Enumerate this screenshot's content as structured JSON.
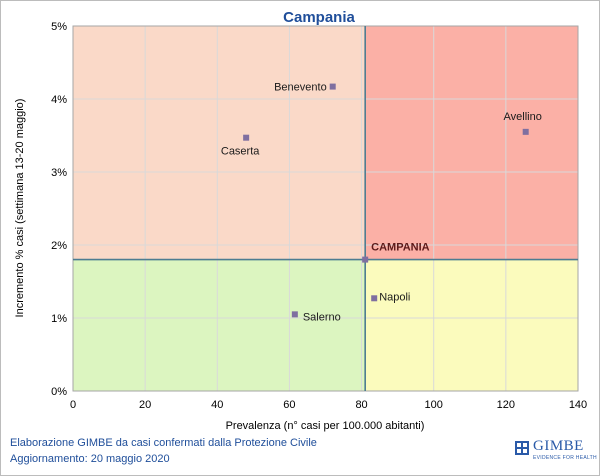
{
  "chart_data": {
    "type": "scatter",
    "title": "Campania",
    "xlabel": "Prevalenza  (n° casi per 100.000 abitanti)",
    "ylabel": "Incremento % casi (settimana 13-20 maggio)",
    "xlim": [
      0,
      140
    ],
    "ylim": [
      0,
      5
    ],
    "x_ticks": [
      "0",
      "20",
      "40",
      "60",
      "80",
      "100",
      "120",
      "140"
    ],
    "y_ticks": [
      "0%",
      "1%",
      "2%",
      "3%",
      "4%",
      "5%"
    ],
    "reference": {
      "label": "CAMPANIA",
      "x": 81,
      "y": 1.8
    },
    "quadrant_colors": {
      "top_left": "#fad9c8",
      "top_right": "#fbb0a6",
      "bottom_left": "#dcf5c0",
      "bottom_right": "#fbfbbd"
    },
    "point_color": "#7f6fa0",
    "reference_line_color": "#4d7c91",
    "points": [
      {
        "label": "Benevento",
        "x": 72,
        "y": 4.17
      },
      {
        "label": "Caserta",
        "x": 48,
        "y": 3.47
      },
      {
        "label": "Avellino",
        "x": 125.5,
        "y": 3.55
      },
      {
        "label": "Salerno",
        "x": 61.5,
        "y": 1.05
      },
      {
        "label": "Napoli",
        "x": 83.5,
        "y": 1.27
      }
    ]
  },
  "footer": {
    "line1": "Elaborazione GIMBE da casi confermati dalla Protezione Civile",
    "line2": "Aggiornamento: 20 maggio 2020"
  },
  "logo": {
    "name": "GIMBE",
    "tagline": "EVIDENCE FOR HEALTH"
  }
}
